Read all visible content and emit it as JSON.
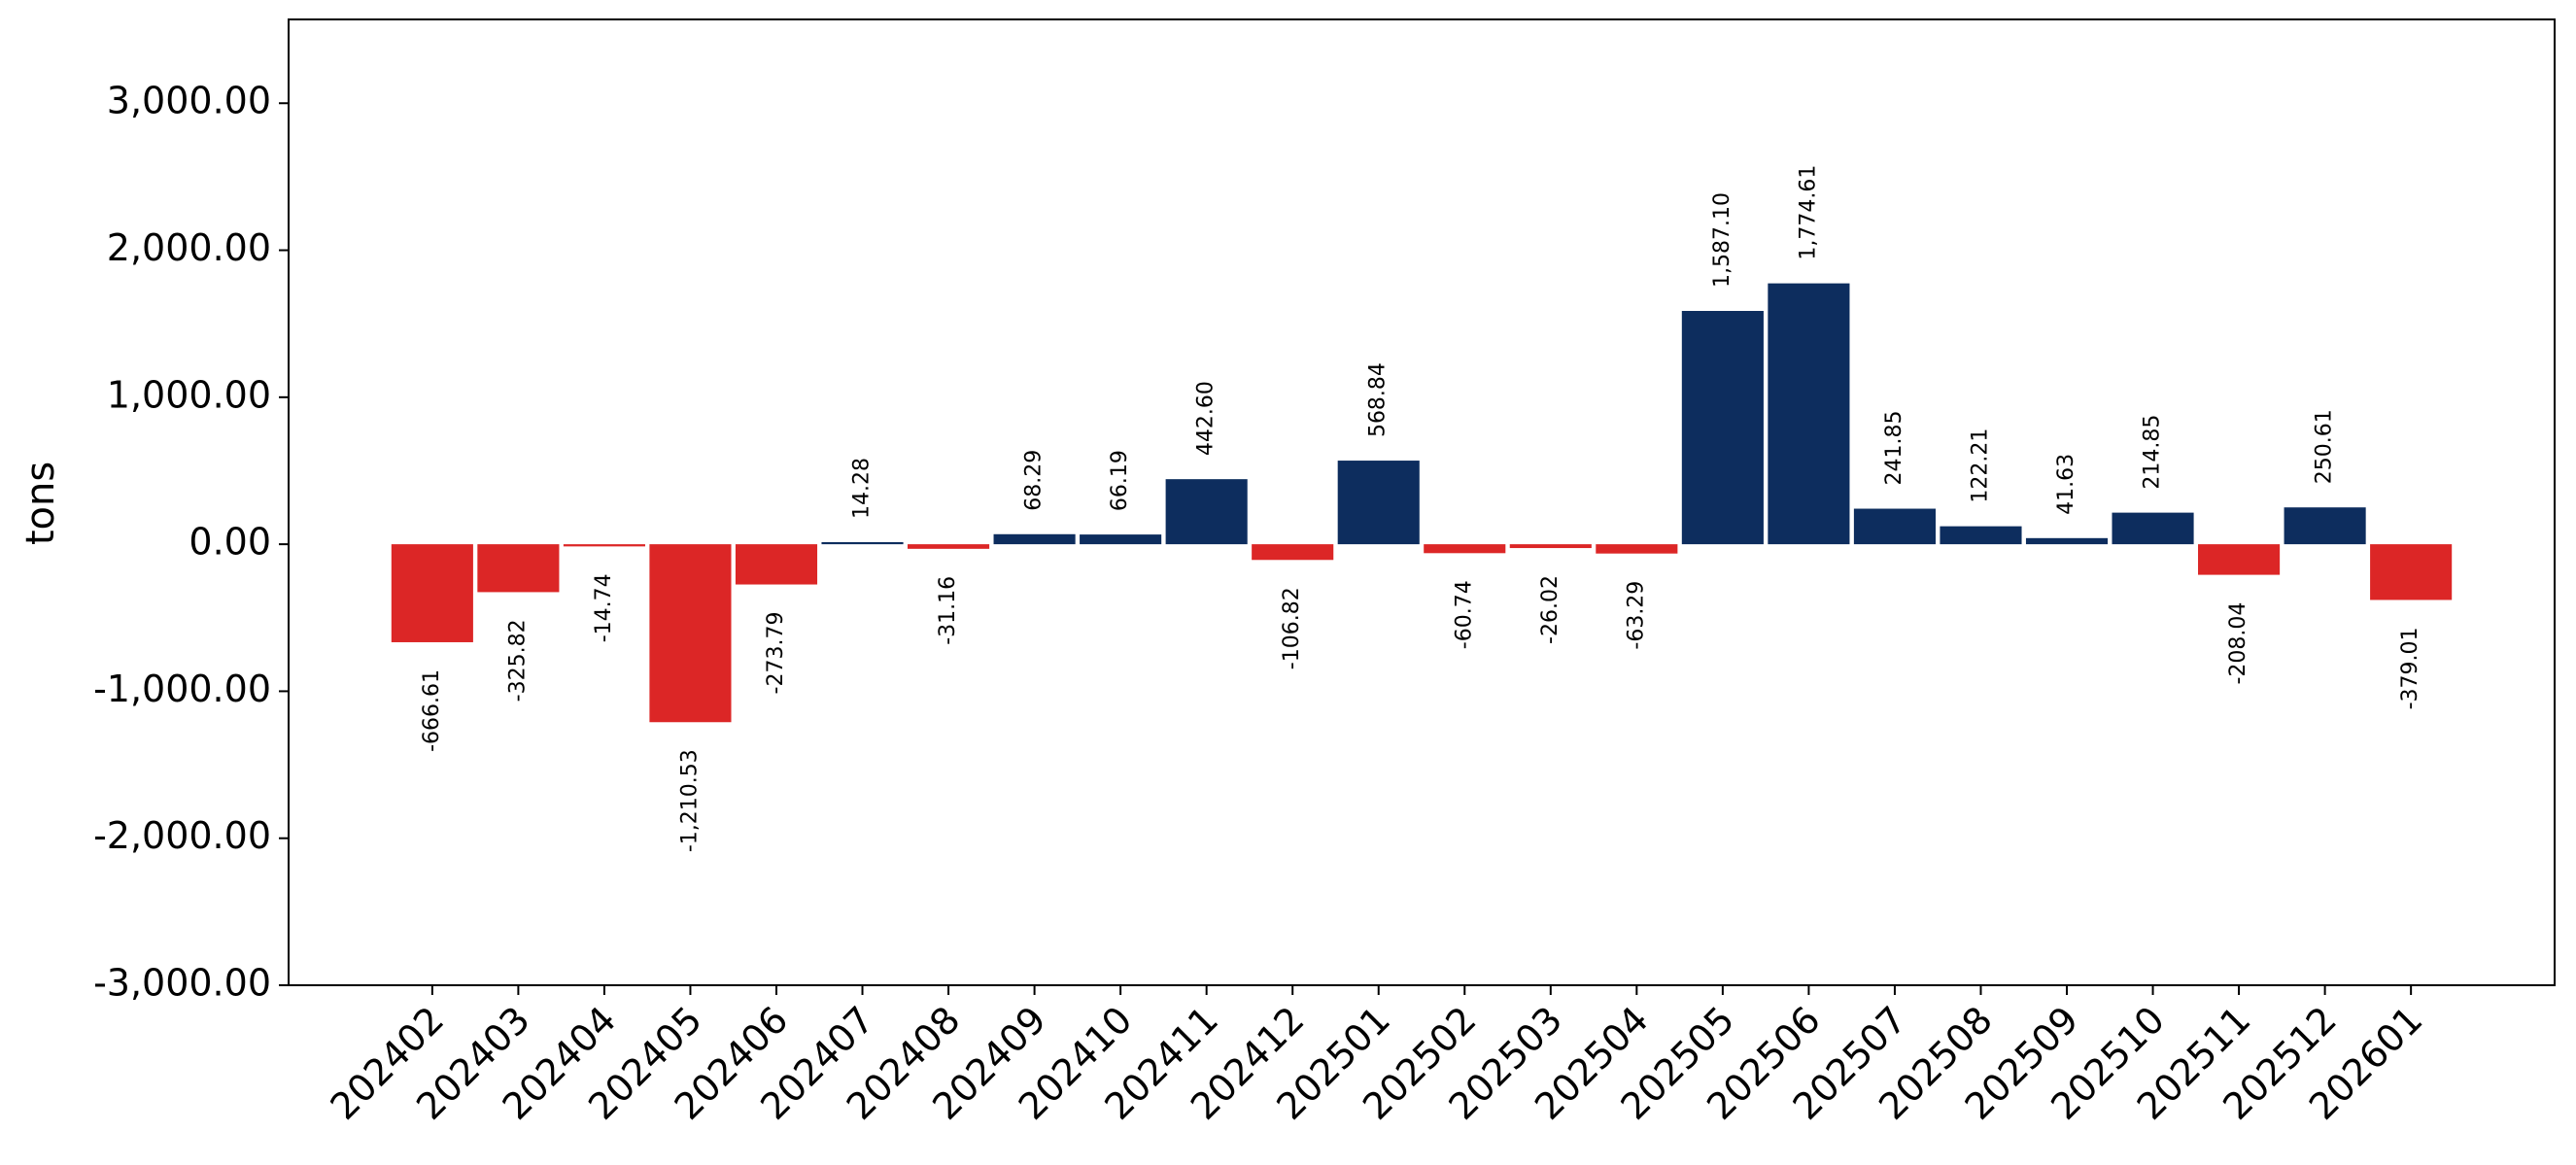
{
  "chart_data": {
    "type": "bar",
    "y_label": "tons",
    "categories": [
      "202402",
      "202403",
      "202404",
      "202405",
      "202406",
      "202407",
      "202408",
      "202409",
      "202410",
      "202411",
      "202412",
      "202501",
      "202502",
      "202503",
      "202504",
      "202505",
      "202506",
      "202507",
      "202508",
      "202509",
      "202510",
      "202511",
      "202512",
      "202601"
    ],
    "values": [
      -666.61,
      -325.82,
      -14.74,
      -1210.53,
      -273.79,
      14.28,
      -31.16,
      68.29,
      66.19,
      442.6,
      -106.82,
      568.84,
      -60.74,
      -26.02,
      -63.29,
      1587.1,
      1774.61,
      241.85,
      122.21,
      41.63,
      214.85,
      -208.04,
      250.61,
      -379.01
    ],
    "value_labels": [
      "-666.61",
      "-325.82",
      "-14.74",
      "-1,210.53",
      "-273.79",
      "14.28",
      "-31.16",
      "68.29",
      "66.19",
      "442.60",
      "-106.82",
      "568.84",
      "-60.74",
      "-26.02",
      "-63.29",
      "1,587.10",
      "1,774.61",
      "241.85",
      "122.21",
      "41.63",
      "214.85",
      "-208.04",
      "250.61",
      "-379.01"
    ],
    "positive_color": "#0d2d5e",
    "negative_color": "#dc2626",
    "ylim": [
      -3000,
      3570
    ],
    "yticks": [
      {
        "value": -3000,
        "label": "-3,000.00"
      },
      {
        "value": -2000,
        "label": "-2,000.00"
      },
      {
        "value": -1000,
        "label": "-1,000.00"
      },
      {
        "value": 0,
        "label": "0.00"
      },
      {
        "value": 1000,
        "label": "1,000.00"
      },
      {
        "value": 2000,
        "label": "2,000.00"
      },
      {
        "value": 3000,
        "label": "3,000.00"
      }
    ],
    "grid": false
  }
}
